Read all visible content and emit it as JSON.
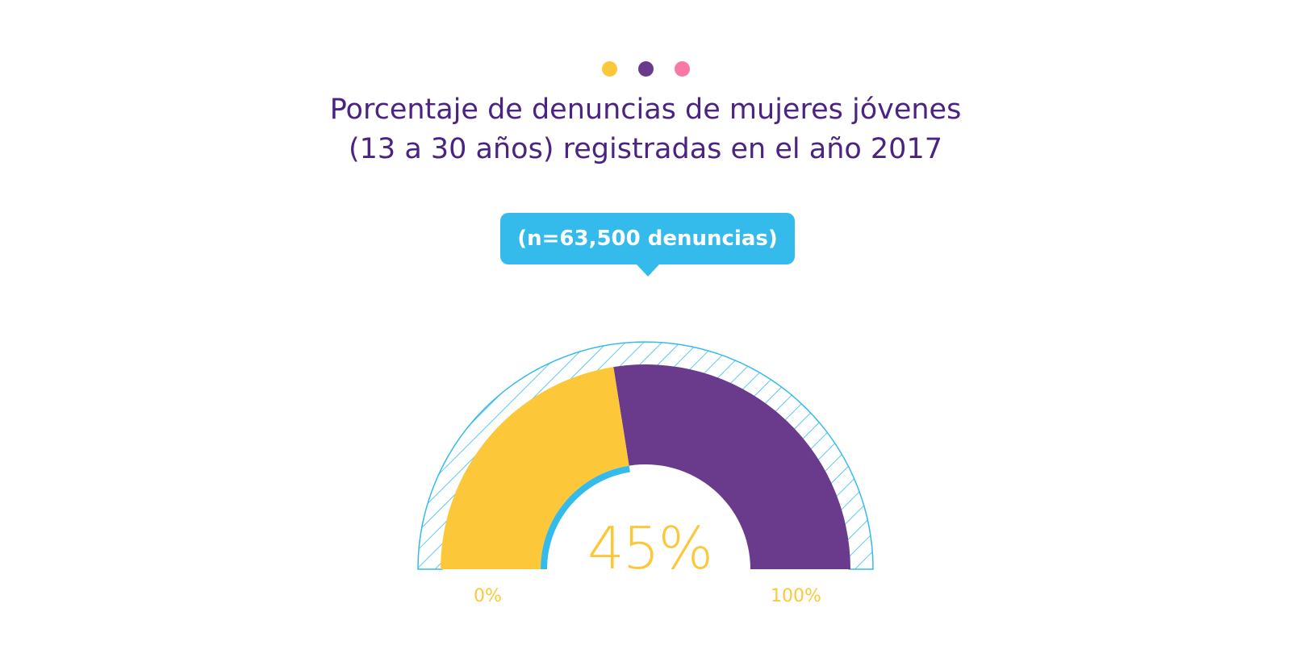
{
  "header": {
    "dot_colors": [
      "#fcc83a",
      "#6a3b8c",
      "#f878a6"
    ],
    "title_line1": "Porcentaje de denuncias de mujeres jóvenes",
    "title_line2": "(13 a 30 años) registradas en el año 2017"
  },
  "callout": {
    "text": "(n=63,500 denuncias)"
  },
  "colors": {
    "title": "#4b2383",
    "share": "#fcc83a",
    "rest": "#6a3b8c",
    "accent": "#34bbec",
    "hatch": "#34bbec"
  },
  "chart_data": {
    "type": "gauge",
    "title": "Porcentaje de denuncias de mujeres jóvenes (13 a 30 años) registradas en el año 2017",
    "value": 45,
    "value_label": "45%",
    "min": 0,
    "max": 100,
    "min_label": "0%",
    "max_label": "100%",
    "annotation": "(n=63,500 denuncias)"
  }
}
